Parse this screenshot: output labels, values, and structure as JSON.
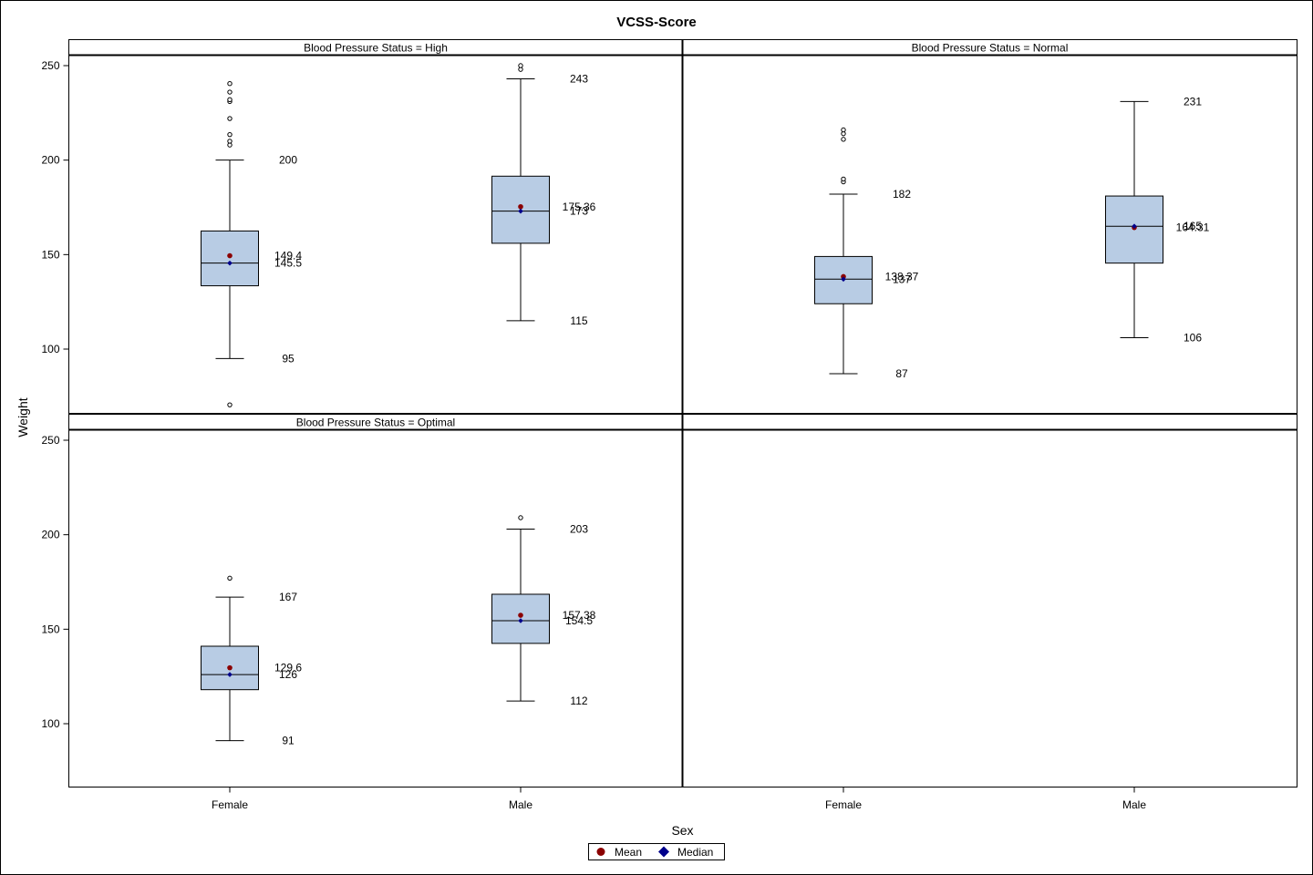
{
  "chart_data": {
    "type": "box",
    "title": "VCSS-Score",
    "xlabel": "Sex",
    "ylabel": "Weight",
    "ylim": [
      60,
      255
    ],
    "yticks": [
      100,
      150,
      200,
      250
    ],
    "categories": [
      "Female",
      "Male"
    ],
    "panel_label_prefix": "Blood Pressure Status = ",
    "legend": [
      {
        "name": "Mean",
        "color": "#8b0000",
        "marker": "circle"
      },
      {
        "name": "Median",
        "color": "#00008b",
        "marker": "diamond"
      }
    ],
    "colors": {
      "box_fill": "#b8cce4",
      "box_stroke": "#000000"
    },
    "panels": [
      {
        "status": "High",
        "boxes": [
          {
            "category": "Female",
            "whisker_low": 95,
            "q1": 133.5,
            "median": 145.5,
            "q3": 162.5,
            "whisker_high": 200,
            "mean": 149.4,
            "outliers": [
              70.5,
              208,
              210,
              213.5,
              222,
              231,
              232,
              236,
              240.5
            ],
            "labels": {
              "high": "200",
              "mean": "149.4",
              "median": "145.5",
              "low": "95"
            }
          },
          {
            "category": "Male",
            "whisker_low": 115,
            "q1": 156,
            "median": 173,
            "q3": 191.5,
            "whisker_high": 243,
            "mean": 175.36,
            "outliers": [
              248,
              250
            ],
            "labels": {
              "high": "243",
              "mean": "175.36",
              "median": "173",
              "low": "115"
            }
          }
        ]
      },
      {
        "status": "Normal",
        "boxes": [
          {
            "category": "Female",
            "whisker_low": 87,
            "q1": 124,
            "median": 137,
            "q3": 149,
            "whisker_high": 182,
            "mean": 138.37,
            "outliers": [
              188.5,
              190,
              211,
              214,
              216
            ],
            "labels": {
              "high": "182",
              "mean": "138.37",
              "median": "137",
              "low": "87"
            }
          },
          {
            "category": "Male",
            "whisker_low": 106,
            "q1": 145.5,
            "median": 165,
            "q3": 181,
            "whisker_high": 231,
            "mean": 164.31,
            "outliers": [],
            "labels": {
              "high": "231",
              "mean": "164.31",
              "median": "165",
              "low": "106"
            }
          }
        ]
      },
      {
        "status": "Optimal",
        "boxes": [
          {
            "category": "Female",
            "whisker_low": 91,
            "q1": 118,
            "median": 126,
            "q3": 141,
            "whisker_high": 167,
            "mean": 129.6,
            "outliers": [
              177
            ],
            "labels": {
              "high": "167",
              "mean": "129.6",
              "median": "126",
              "low": "91"
            }
          },
          {
            "category": "Male",
            "whisker_low": 112,
            "q1": 142.5,
            "median": 154.5,
            "q3": 168.5,
            "whisker_high": 203,
            "mean": 157.38,
            "outliers": [
              209
            ],
            "labels": {
              "high": "203",
              "mean": "157.38",
              "median": "154.5",
              "low": "112"
            }
          }
        ]
      }
    ]
  }
}
